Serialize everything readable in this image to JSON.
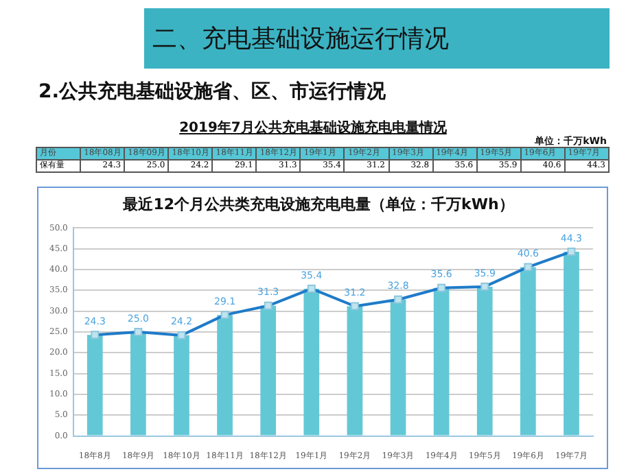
{
  "chart_data": {
    "type": "bar",
    "title": "最近12个月公共类充电设施充电电量（单位：千万kWh）",
    "annotations": [
      "二、充电基础设施运行情况",
      "2.公共充电基础设施省、区、市运行情况",
      "2019年7月公共充电基础设施充电电量情况",
      "单位：千万kWh",
      "月份",
      "保有量",
      "18年08月",
      "18年09月",
      "18年10月",
      "18年11月",
      "18年12月",
      "19年1月",
      "19年2月",
      "19年3月",
      "19年4月",
      "19年5月",
      "19年6月",
      "19年7月"
    ],
    "categories": [
      "18年8月",
      "18年9月",
      "18年10月",
      "18年11月",
      "18年12月",
      "19年1月",
      "19年2月",
      "19年3月",
      "19年4月",
      "19年5月",
      "19年6月",
      "19年7月"
    ],
    "series": [
      {
        "color": "#63c8d6",
        "values": [
          24.3,
          25.0,
          24.2,
          29.1,
          31.3,
          35.4,
          31.2,
          32.8,
          35.6,
          35.9,
          40.6,
          44.3
        ]
      },
      {
        "type": "line",
        "color": "#1f7bc8",
        "marker": "square",
        "values": [
          24.3,
          25.0,
          24.2,
          29.1,
          31.3,
          35.4,
          31.2,
          32.8,
          35.6,
          35.9,
          40.6,
          44.3
        ],
        "value_labels": [
          "24.3",
          "25.0",
          "24.2",
          "29.1",
          "31.3",
          "35.4",
          "31.2",
          "32.8",
          "35.6",
          "35.9",
          "40.6",
          "44.3"
        ]
      }
    ],
    "ylim": [
      0,
      50
    ],
    "yticks": [
      {
        "value": 0,
        "label": "0.0"
      },
      {
        "value": 5,
        "label": "5.0"
      },
      {
        "value": 10,
        "label": "10.0"
      },
      {
        "value": 15,
        "label": "15.0"
      },
      {
        "value": 20,
        "label": "20.0"
      },
      {
        "value": 25,
        "label": "25.0"
      },
      {
        "value": 30,
        "label": "30.0"
      },
      {
        "value": 35,
        "label": "35.0"
      },
      {
        "value": 40,
        "label": "40.0"
      },
      {
        "value": 45,
        "label": "45.0"
      },
      {
        "value": 50,
        "label": "50.0"
      }
    ],
    "grid": "y",
    "legend": false
  }
}
